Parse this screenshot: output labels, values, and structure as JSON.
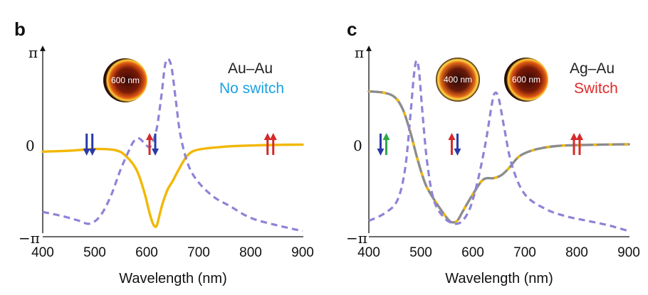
{
  "chart_data": [
    {
      "type": "line",
      "panel": "b",
      "xlabel": "Wavelength (nm)",
      "xlim": [
        400,
        900
      ],
      "xticks": [
        "400",
        "500",
        "600",
        "700",
        "800",
        "900"
      ],
      "ylim": [
        -3.1416,
        3.1416
      ],
      "yticks": [
        {
          "value": 3.1416,
          "label": "π"
        },
        {
          "value": 0,
          "label": "0"
        },
        {
          "value": -3.1416,
          "label": "−π"
        }
      ],
      "legend": [
        {
          "text": "Au–Au",
          "color": "#222222"
        },
        {
          "text": "No switch",
          "color": "#1ba1e2"
        }
      ],
      "inset_labels": [
        "600 nm"
      ],
      "series": [
        {
          "style": "solid",
          "color": "#f2b705",
          "x": [
            400,
            450,
            500,
            540,
            560,
            580,
            595,
            605,
            612,
            618,
            622,
            630,
            640,
            650,
            665,
            680,
            700,
            750,
            800,
            850,
            900
          ],
          "y": [
            -0.25,
            -0.22,
            -0.16,
            -0.2,
            -0.4,
            -0.85,
            -1.6,
            -2.3,
            -2.7,
            -2.8,
            -2.6,
            -2.05,
            -1.55,
            -1.25,
            -0.75,
            -0.35,
            -0.18,
            -0.08,
            -0.04,
            -0.02,
            -0.01
          ]
        },
        {
          "style": "dashed",
          "color": "#8e83d6",
          "x": [
            400,
            440,
            470,
            490,
            510,
            530,
            550,
            565,
            575,
            585,
            595,
            605,
            612,
            620,
            628,
            635,
            641,
            648,
            656,
            665,
            680,
            700,
            730,
            760,
            800,
            850,
            900
          ],
          "y": [
            -2.3,
            -2.45,
            -2.6,
            -2.7,
            -2.45,
            -1.8,
            -0.85,
            -0.25,
            0.1,
            0.2,
            0.05,
            -0.1,
            0.1,
            0.6,
            1.6,
            2.65,
            2.9,
            2.6,
            1.5,
            0.3,
            -0.7,
            -1.3,
            -1.8,
            -2.1,
            -2.5,
            -2.75,
            -2.95
          ]
        }
      ],
      "arrow_pairs": [
        {
          "x": 490,
          "colors": [
            "#2a3aa8",
            "#2a3aa8"
          ]
        },
        {
          "x": 611,
          "colors": [
            "#d42a2a",
            "#2a3aa8"
          ]
        },
        {
          "x": 838,
          "colors": [
            "#d42a2a",
            "#d42a2a"
          ]
        }
      ]
    },
    {
      "type": "line",
      "panel": "c",
      "xlabel": "Wavelength (nm)",
      "xlim": [
        400,
        900
      ],
      "xticks": [
        "400",
        "500",
        "600",
        "700",
        "800",
        "900"
      ],
      "ylim": [
        -3.1416,
        3.1416
      ],
      "yticks": [
        {
          "value": 3.1416,
          "label": "π"
        },
        {
          "value": 0,
          "label": "0"
        },
        {
          "value": -3.1416,
          "label": "−π"
        }
      ],
      "legend": [
        {
          "text": "Ag–Au",
          "color": "#222222"
        },
        {
          "text": "Switch",
          "color": "#e02a2a"
        }
      ],
      "inset_labels": [
        "400 nm",
        "600 nm"
      ],
      "series": [
        {
          "style": "solid",
          "color": "#8c8c8c",
          "accent": "#f2b705",
          "x": [
            400,
            430,
            450,
            465,
            480,
            495,
            510,
            530,
            550,
            560,
            570,
            580,
            600,
            620,
            640,
            655,
            670,
            690,
            720,
            760,
            800,
            850,
            900
          ],
          "y": [
            1.8,
            1.75,
            1.6,
            1.2,
            0.4,
            -0.6,
            -1.4,
            -2.0,
            -2.5,
            -2.65,
            -2.6,
            -2.3,
            -1.7,
            -1.2,
            -1.15,
            -1.05,
            -0.8,
            -0.4,
            -0.18,
            -0.06,
            -0.03,
            -0.01,
            0
          ]
        },
        {
          "style": "dashed",
          "color": "#8e83d6",
          "x": [
            400,
            430,
            455,
            470,
            480,
            487,
            492,
            497,
            503,
            512,
            525,
            545,
            565,
            580,
            595,
            610,
            625,
            637,
            643,
            650,
            660,
            675,
            700,
            740,
            780,
            820,
            860,
            900
          ],
          "y": [
            -2.6,
            -2.35,
            -1.9,
            -0.8,
            1.0,
            2.4,
            2.85,
            2.4,
            1.1,
            -0.6,
            -1.9,
            -2.5,
            -2.7,
            -2.6,
            -2.15,
            -1.2,
            0.1,
            1.4,
            1.75,
            1.55,
            0.6,
            -0.7,
            -1.7,
            -2.2,
            -2.45,
            -2.6,
            -2.75,
            -2.95
          ]
        }
      ],
      "arrow_pairs": [
        {
          "x": 428,
          "colors": [
            "#2a3aa8",
            "#2fa84a"
          ]
        },
        {
          "x": 565,
          "colors": [
            "#d42a2a",
            "#2a3aa8"
          ]
        },
        {
          "x": 800,
          "colors": [
            "#d42a2a",
            "#d42a2a"
          ]
        }
      ]
    }
  ]
}
